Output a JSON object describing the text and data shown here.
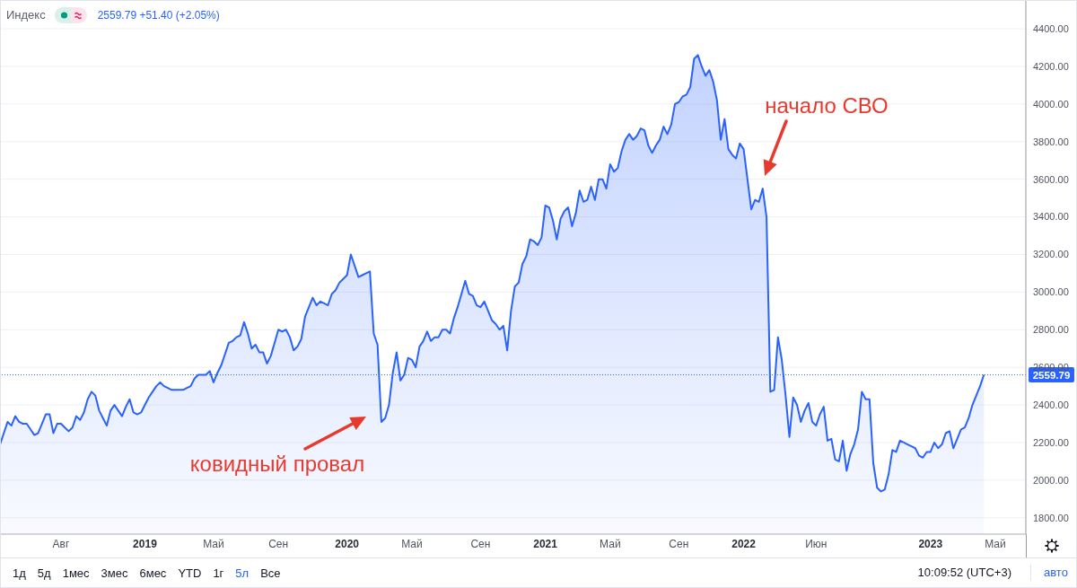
{
  "chart_data": {
    "type": "area",
    "title": "Индекс",
    "subtitle": "2559.79 +51.40 (+2.05%)",
    "categories": [
      null,
      null,
      null,
      null,
      null,
      null,
      null,
      null,
      null,
      null,
      null,
      null,
      null,
      null,
      null,
      null,
      "Авг",
      null,
      null,
      null,
      null,
      null,
      null,
      null,
      null,
      null,
      null,
      null,
      null,
      null,
      null,
      null,
      null,
      null,
      null,
      null,
      null,
      null,
      "2019",
      null,
      null,
      null,
      null,
      null,
      null,
      null,
      null,
      null,
      null,
      null,
      null,
      null,
      null,
      null,
      null,
      null,
      "Май",
      null,
      null,
      null,
      null,
      null,
      null,
      null,
      null,
      null,
      null,
      null,
      null,
      null,
      null,
      null,
      null,
      "Сен",
      null,
      null,
      null,
      null,
      null,
      null,
      null,
      null,
      null,
      null,
      null,
      null,
      null,
      null,
      null,
      null,
      null,
      "2020",
      null,
      null,
      null,
      null,
      null,
      null,
      null,
      null,
      null,
      null,
      null,
      null,
      null,
      null,
      null,
      null,
      "Май",
      null,
      null,
      null,
      null,
      null,
      null,
      null,
      null,
      null,
      null,
      null,
      null,
      null,
      null,
      null,
      null,
      null,
      "Сен",
      null,
      null,
      null,
      null,
      null,
      null,
      null,
      null,
      null,
      null,
      null,
      null,
      null,
      null,
      null,
      null,
      "2021",
      null,
      null,
      null,
      null,
      null,
      null,
      null,
      null,
      null,
      null,
      null,
      null,
      null,
      null,
      null,
      null,
      "Май",
      null,
      null,
      null,
      null,
      null,
      null,
      null,
      null,
      null,
      null,
      null,
      null,
      null,
      null,
      null,
      null,
      null,
      "Сен",
      null,
      null,
      null,
      null,
      null,
      null,
      null,
      null,
      null,
      null,
      null,
      null,
      null,
      null,
      null,
      null,
      "2022",
      null,
      null,
      null,
      null,
      null,
      null,
      null,
      null,
      null,
      null,
      null,
      null,
      null,
      null,
      null,
      null,
      null,
      null,
      "Июн",
      null,
      null,
      null,
      null,
      null,
      null,
      null,
      null,
      null,
      null,
      null,
      null,
      null,
      null,
      null,
      null,
      null,
      null,
      null,
      null,
      null,
      null,
      null,
      null,
      null,
      null,
      null,
      null,
      null,
      "2023",
      null,
      null,
      null,
      null,
      null,
      null,
      null,
      null,
      null,
      null,
      null,
      null,
      null,
      null,
      null,
      null,
      "Май",
      null,
      null,
      null,
      null,
      null,
      null,
      null,
      null
    ],
    "values": [
      2190,
      2250,
      2310,
      2290,
      2340,
      2310,
      2300,
      2300,
      2270,
      2240,
      2250,
      2300,
      2350,
      2350,
      2250,
      2300,
      2300,
      2280,
      2260,
      2280,
      2340,
      2320,
      2360,
      2430,
      2470,
      2450,
      2370,
      2330,
      2290,
      2370,
      2400,
      2370,
      2340,
      2390,
      2430,
      2360,
      2350,
      2360,
      2400,
      2440,
      2470,
      2500,
      2520,
      2500,
      2490,
      2480,
      2480,
      2480,
      2480,
      2490,
      2500,
      2540,
      2560,
      2560,
      2560,
      2580,
      2520,
      2570,
      2610,
      2670,
      2730,
      2740,
      2760,
      2770,
      2840,
      2780,
      2700,
      2720,
      2680,
      2680,
      2620,
      2660,
      2730,
      2800,
      2790,
      2800,
      2760,
      2690,
      2710,
      2750,
      2870,
      2920,
      2970,
      2930,
      2950,
      2940,
      2930,
      2990,
      3010,
      3050,
      3070,
      3090,
      3200,
      3140,
      3080,
      3090,
      3100,
      3110,
      2780,
      2720,
      2310,
      2330,
      2400,
      2570,
      2680,
      2530,
      2560,
      2650,
      2640,
      2600,
      2710,
      2740,
      2790,
      2740,
      2760,
      2760,
      2800,
      2800,
      2780,
      2860,
      2920,
      2990,
      3060,
      2990,
      2980,
      2930,
      2920,
      2950,
      2900,
      2850,
      2830,
      2800,
      2820,
      2690,
      2900,
      3030,
      3050,
      3150,
      3190,
      3280,
      3270,
      3250,
      3290,
      3460,
      3450,
      3380,
      3280,
      3390,
      3430,
      3450,
      3350,
      3420,
      3540,
      3480,
      3490,
      3560,
      3490,
      3600,
      3600,
      3550,
      3680,
      3640,
      3660,
      3750,
      3810,
      3840,
      3810,
      3830,
      3870,
      3860,
      3780,
      3740,
      3780,
      3810,
      3880,
      3840,
      3890,
      4000,
      4010,
      4040,
      4050,
      4090,
      4240,
      4260,
      4200,
      4150,
      4180,
      4120,
      4020,
      3810,
      3920,
      3760,
      3730,
      3710,
      3790,
      3760,
      3600,
      3440,
      3490,
      3480,
      3550,
      3400,
      2470,
      2480,
      2760,
      2640,
      2450,
      2230,
      2440,
      2400,
      2310,
      2370,
      2410,
      2310,
      2290,
      2350,
      2390,
      2210,
      2220,
      2110,
      2100,
      2210,
      2050,
      2140,
      2190,
      2270,
      2470,
      2430,
      2430,
      2090,
      1960,
      1940,
      1950,
      2030,
      2160,
      2150,
      2210,
      2200,
      2190,
      2180,
      2170,
      2130,
      2120,
      2150,
      2150,
      2200,
      2170,
      2190,
      2250,
      2260,
      2170,
      2220,
      2270,
      2280,
      2330,
      2400,
      2450,
      2500,
      2560,
      null,
      null,
      null,
      null,
      null,
      null,
      null,
      null,
      null,
      null,
      null
    ],
    "color": "#2962ff",
    "ylim": [
      1713,
      4553
    ],
    "yticks": [
      {
        "value": 1800,
        "label": "1800.00"
      },
      {
        "value": 2000,
        "label": "2000.00"
      },
      {
        "value": 2200,
        "label": "2200.00"
      },
      {
        "value": 2400,
        "label": "2400.00"
      },
      {
        "value": 2600,
        "label": "2600.00"
      },
      {
        "value": 2800,
        "label": "2800.00"
      },
      {
        "value": 3000,
        "label": "3000.00"
      },
      {
        "value": 3200,
        "label": "3200.00"
      },
      {
        "value": 3400,
        "label": "3400.00"
      },
      {
        "value": 3600,
        "label": "3600.00"
      },
      {
        "value": 3800,
        "label": "3800.00"
      },
      {
        "value": 4000,
        "label": "4000.00"
      },
      {
        "value": 4200,
        "label": "4200.00"
      },
      {
        "value": 4400,
        "label": "4400.00"
      }
    ],
    "grid": "y",
    "ref_lines": [
      {
        "axis": "y",
        "value": 2559.79,
        "label": "2559.79",
        "color": "#2962ff",
        "line_style": "dotted"
      }
    ],
    "annotations": [
      "ковидный провал",
      "начало СВО",
      "1д",
      "5д",
      "1мес",
      "3мес",
      "6мес",
      "YTD",
      "1г",
      "5л",
      "Все",
      "10:09:52 (UTC+3)",
      "авто"
    ]
  }
}
